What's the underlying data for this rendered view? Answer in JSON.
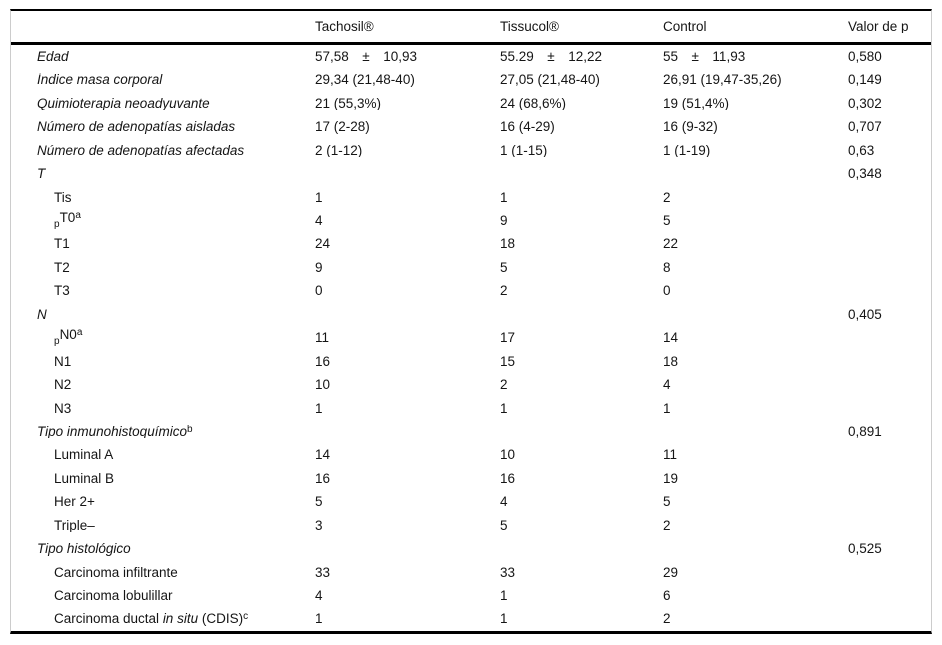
{
  "colors": {
    "rule": "#000000",
    "frame": "#cccccc",
    "text": "#151515",
    "background": "#ffffff"
  },
  "table": {
    "header": {
      "col0": "",
      "col1": "Tachosil®",
      "col2": "Tissucol®",
      "col3": "Control",
      "col4": "Valor de p"
    },
    "rows": [
      {
        "indent": false,
        "label": [
          {
            "t": "Edad",
            "s": "i"
          }
        ],
        "cells": [
          "57,58 ± 10,93",
          "55.29 ± 12,22",
          "55 ± 11,93",
          "0,580"
        ]
      },
      {
        "indent": false,
        "label": [
          {
            "t": "Índice masa corporal",
            "s": "i"
          }
        ],
        "cells": [
          "29,34 (21,48-40)",
          "27,05 (21,48-40)",
          "26,91 (19,47-35,26)",
          "0,149"
        ]
      },
      {
        "indent": false,
        "label": [
          {
            "t": "Quimioterapia neoadyuvante",
            "s": "i"
          }
        ],
        "cells": [
          "21 (55,3%)",
          "24 (68,6%)",
          "19 (51,4%)",
          "0,302"
        ]
      },
      {
        "indent": false,
        "label": [
          {
            "t": "Número de adenopatías aisladas",
            "s": "i"
          }
        ],
        "cells": [
          "17 (2-28)",
          "16 (4-29)",
          "16 (9-32)",
          "0,707"
        ]
      },
      {
        "indent": false,
        "label": [
          {
            "t": "Número de adenopatías afectadas",
            "s": "i"
          }
        ],
        "cells": [
          "2 (1-12)",
          "1 (1-15)",
          "1 (1-19)",
          "0,63"
        ]
      },
      {
        "indent": false,
        "label": [
          {
            "t": "T",
            "s": "i"
          }
        ],
        "cells": [
          "",
          "",
          "",
          "0,348"
        ]
      },
      {
        "indent": true,
        "label": [
          {
            "t": "Tis",
            "s": "n"
          }
        ],
        "cells": [
          "1",
          "1",
          "2",
          ""
        ]
      },
      {
        "indent": true,
        "label": [
          {
            "t": "p",
            "s": "sub"
          },
          {
            "t": "T0",
            "s": "n"
          },
          {
            "t": "a",
            "s": "sup"
          }
        ],
        "cells": [
          "4",
          "9",
          "5",
          ""
        ]
      },
      {
        "indent": true,
        "label": [
          {
            "t": "T1",
            "s": "n"
          }
        ],
        "cells": [
          "24",
          "18",
          "22",
          ""
        ]
      },
      {
        "indent": true,
        "label": [
          {
            "t": "T2",
            "s": "n"
          }
        ],
        "cells": [
          "9",
          "5",
          "8",
          ""
        ]
      },
      {
        "indent": true,
        "label": [
          {
            "t": "T3",
            "s": "n"
          }
        ],
        "cells": [
          "0",
          "2",
          "0",
          ""
        ]
      },
      {
        "indent": false,
        "label": [
          {
            "t": "N",
            "s": "i"
          }
        ],
        "cells": [
          "",
          "",
          "",
          "0,405"
        ]
      },
      {
        "indent": true,
        "label": [
          {
            "t": "p",
            "s": "sub"
          },
          {
            "t": "N0",
            "s": "n"
          },
          {
            "t": "a",
            "s": "sup"
          }
        ],
        "cells": [
          "11",
          "17",
          "14",
          ""
        ]
      },
      {
        "indent": true,
        "label": [
          {
            "t": "N1",
            "s": "n"
          }
        ],
        "cells": [
          "16",
          "15",
          "18",
          ""
        ]
      },
      {
        "indent": true,
        "label": [
          {
            "t": "N2",
            "s": "n"
          }
        ],
        "cells": [
          "10",
          "2",
          "4",
          ""
        ]
      },
      {
        "indent": true,
        "label": [
          {
            "t": "N3",
            "s": "n"
          }
        ],
        "cells": [
          "1",
          "1",
          "1",
          ""
        ]
      },
      {
        "indent": false,
        "label": [
          {
            "t": "Tipo inmunohistoquímico",
            "s": "i"
          },
          {
            "t": "b",
            "s": "sup"
          }
        ],
        "cells": [
          "",
          "",
          "",
          "0,891"
        ]
      },
      {
        "indent": true,
        "label": [
          {
            "t": "Luminal A",
            "s": "n"
          }
        ],
        "cells": [
          "14",
          "10",
          "11",
          ""
        ]
      },
      {
        "indent": true,
        "label": [
          {
            "t": "Luminal B",
            "s": "n"
          }
        ],
        "cells": [
          "16",
          "16",
          "19",
          ""
        ]
      },
      {
        "indent": true,
        "label": [
          {
            "t": "Her 2+",
            "s": "n"
          }
        ],
        "cells": [
          "5",
          "4",
          "5",
          ""
        ]
      },
      {
        "indent": true,
        "label": [
          {
            "t": "Triple–",
            "s": "n"
          }
        ],
        "cells": [
          "3",
          "5",
          "2",
          ""
        ]
      },
      {
        "indent": false,
        "label": [
          {
            "t": "Tipo histológico",
            "s": "i"
          }
        ],
        "cells": [
          "",
          "",
          "",
          "0,525"
        ]
      },
      {
        "indent": true,
        "label": [
          {
            "t": "Carcinoma infiltrante",
            "s": "n"
          }
        ],
        "cells": [
          "33",
          "33",
          "29",
          ""
        ]
      },
      {
        "indent": true,
        "label": [
          {
            "t": "Carcinoma lobulillar",
            "s": "n"
          }
        ],
        "cells": [
          "4",
          "1",
          "6",
          ""
        ]
      },
      {
        "indent": true,
        "label": [
          {
            "t": "Carcinoma ductal ",
            "s": "n"
          },
          {
            "t": "in situ",
            "s": "i"
          },
          {
            "t": " (CDIS)",
            "s": "n"
          },
          {
            "t": "c",
            "s": "sup"
          }
        ],
        "cells": [
          "1",
          "1",
          "2",
          ""
        ]
      }
    ]
  }
}
